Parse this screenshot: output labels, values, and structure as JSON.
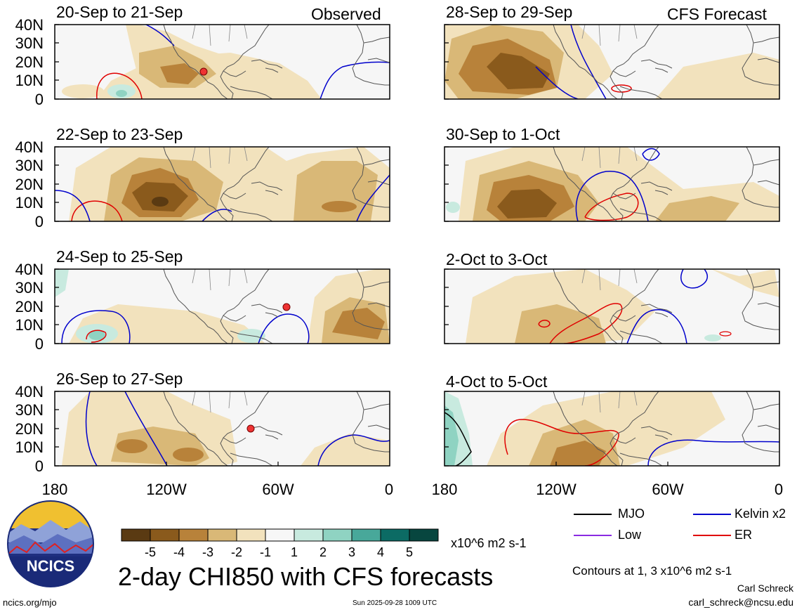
{
  "panels": [
    {
      "id": "p1",
      "title": "20-Sep to 21-Sep",
      "tag": "Observed"
    },
    {
      "id": "p2",
      "title": "22-Sep to 23-Sep",
      "tag": ""
    },
    {
      "id": "p3",
      "title": "24-Sep to 25-Sep",
      "tag": ""
    },
    {
      "id": "p4",
      "title": "26-Sep to 27-Sep",
      "tag": ""
    },
    {
      "id": "p5",
      "title": "28-Sep to 29-Sep",
      "tag": "CFS Forecast"
    },
    {
      "id": "p6",
      "title": "30-Sep to 1-Oct",
      "tag": ""
    },
    {
      "id": "p7",
      "title": "2-Oct to 3-Oct",
      "tag": ""
    },
    {
      "id": "p8",
      "title": "4-Oct to 5-Oct",
      "tag": ""
    }
  ],
  "y_ticks": [
    "40N",
    "30N",
    "20N",
    "10N",
    "0"
  ],
  "x_ticks": [
    "180",
    "120W",
    "60W",
    "0"
  ],
  "colorbar": {
    "labels": [
      "-5",
      "-4",
      "-3",
      "-2",
      "-1",
      "1",
      "2",
      "3",
      "4",
      "5"
    ],
    "colors": [
      "#5a3a12",
      "#8a5a1c",
      "#b8823a",
      "#d9b877",
      "#f2e2bd",
      "#f7f7f7",
      "#c8eadf",
      "#8fd3c2",
      "#48a89a",
      "#0c6b64",
      "#07463f"
    ],
    "units": "x10^6 m2 s-1"
  },
  "legend": {
    "mjo": {
      "label": "MJO",
      "color": "#000000"
    },
    "low": {
      "label": "Low",
      "color": "#8a2be2"
    },
    "kelvin": {
      "label": "Kelvin x2",
      "color": "#0000cc"
    },
    "er": {
      "label": "ER",
      "color": "#e00000"
    }
  },
  "contours_note": "Contours at 1, 3 x10^6 m2 s-1",
  "main_title": "2-day CHI850 with CFS forecasts",
  "logo_text": "NCICS",
  "url": "ncics.org/mjo",
  "timestamp": "Sun 2025-09-28 1009 UTC",
  "author": "Carl Schreck",
  "email": "carl_schreck@ncsu.edu"
}
